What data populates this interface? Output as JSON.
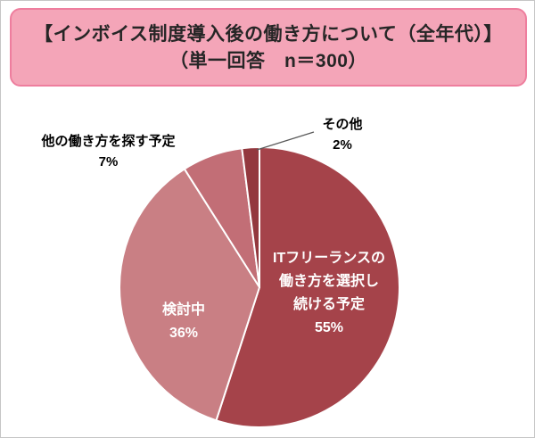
{
  "title": {
    "line1": "【インボイス制度導入後の働き方について（全年代）】",
    "line2": "（単一回答　n＝300）",
    "background": "#F4A5B8",
    "border_color": "#EE7E9E",
    "text_color": "#262626"
  },
  "chart_data": {
    "type": "pie",
    "title": "インボイス制度導入後の働き方について（全年代）（単一回答 n＝300）",
    "categories": [
      "ITフリーランスの働き方を選択し続ける予定",
      "検討中",
      "他の働き方を探す予定",
      "その他"
    ],
    "values": [
      55,
      36,
      7,
      2
    ],
    "unit": "%",
    "colors": [
      "#A5434A",
      "#C97F84",
      "#C26E76",
      "#93383E"
    ],
    "start_angle_deg": -90,
    "direction": "clockwise",
    "legend_position": "none",
    "labels": {
      "slice_55": {
        "lines": [
          "ITフリーランスの",
          "働き方を選択し",
          "続ける予定"
        ],
        "value_text": "55%",
        "placement": "inside",
        "color": "#ffffff"
      },
      "slice_36": {
        "lines": [
          "検討中"
        ],
        "value_text": "36%",
        "placement": "inside",
        "color": "#ffffff"
      },
      "slice_7": {
        "lines": [
          "他の働き方を探す予定"
        ],
        "value_text": "7%",
        "placement": "outside",
        "color": "#000000"
      },
      "slice_2": {
        "lines": [
          "その他"
        ],
        "value_text": "2%",
        "placement": "outside",
        "color": "#000000",
        "leader_line": true
      }
    }
  }
}
